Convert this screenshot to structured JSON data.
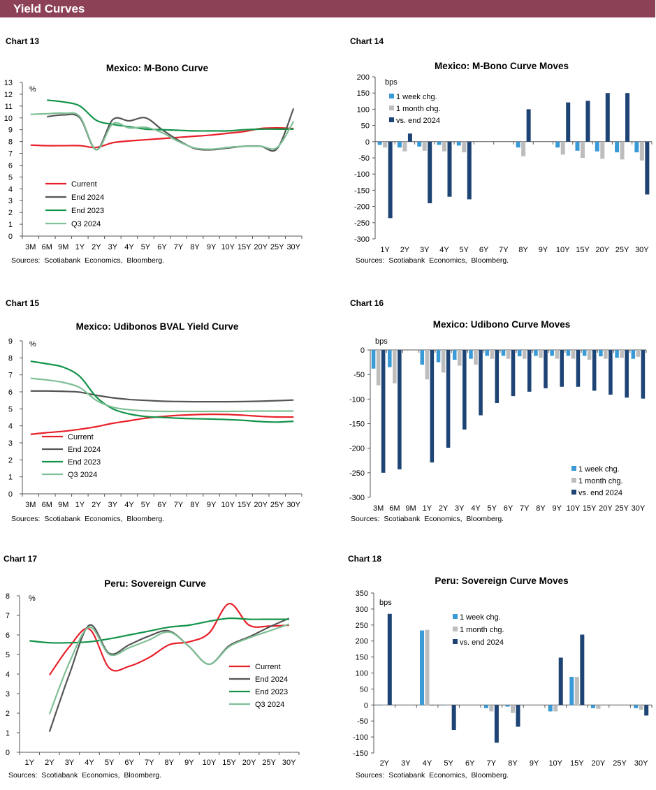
{
  "header": {
    "title": "Yield Curves"
  },
  "charts": [
    {
      "label": "Chart 13",
      "sources": "Sources: Scotiabank Economics, Bloomberg."
    },
    {
      "label": "Chart 14",
      "sources": "Sources: Scotiabank Economics, Bloomberg."
    },
    {
      "label": "Chart 15",
      "sources": "Sources: Scotiabank Economics, Bloomberg."
    },
    {
      "label": "Chart 16",
      "sources": "Sources: Scotiabank Economics, Bloomberg."
    },
    {
      "label": "Chart 17",
      "sources": "Sources: Scotiabank Economics, Bloomberg."
    },
    {
      "label": "Chart 18",
      "sources": "Sources: Scotiabank Economics, Bloomberg."
    }
  ],
  "chart_data": [
    {
      "type": "line",
      "title": "Mexico: M-Bono Curve",
      "unit": "%",
      "ylim": [
        0,
        13
      ],
      "ystep": 1,
      "grid": false,
      "legend": "left",
      "categories": [
        "3M",
        "6M",
        "9M",
        "1Y",
        "2Y",
        "3Y",
        "4Y",
        "5Y",
        "6Y",
        "7Y",
        "8Y",
        "9Y",
        "10Y",
        "15Y",
        "20Y",
        "25Y",
        "30Y"
      ],
      "series": [
        {
          "name": "Current",
          "color": "#e8202a",
          "values": [
            7.7,
            7.65,
            7.65,
            7.65,
            7.5,
            7.9,
            8.05,
            8.15,
            8.25,
            8.35,
            8.45,
            8.55,
            8.7,
            8.85,
            9.1,
            9.15,
            9.1
          ]
        },
        {
          "name": "End 2024",
          "color": "#555555",
          "values": [
            null,
            10.1,
            10.25,
            10.0,
            7.3,
            9.85,
            9.75,
            10.0,
            9.0,
            8.1,
            7.4,
            7.3,
            7.45,
            7.6,
            7.6,
            7.4,
            10.8
          ]
        },
        {
          "name": "End 2023",
          "color": "#13934a",
          "values": [
            null,
            11.5,
            11.35,
            11.0,
            9.8,
            9.45,
            9.25,
            9.05,
            9.0,
            8.95,
            8.9,
            8.9,
            8.9,
            9.0,
            9.05,
            9.05,
            9.05
          ]
        },
        {
          "name": "Q3 2024",
          "color": "#7fbf96",
          "values": [
            10.3,
            10.35,
            10.4,
            10.1,
            7.3,
            9.5,
            9.15,
            9.2,
            8.75,
            8.0,
            7.45,
            7.35,
            7.5,
            7.6,
            7.6,
            7.5,
            9.7
          ]
        }
      ]
    },
    {
      "type": "bar",
      "title": "Mexico: M-Bono Curve Moves",
      "unit": "bps",
      "ylim": [
        -300,
        200
      ],
      "ystep": 50,
      "grid": false,
      "legend": "top-left",
      "categories": [
        "1Y",
        "2Y",
        "3Y",
        "4Y",
        "5Y",
        "6Y",
        "7Y",
        "8Y",
        "9Y",
        "10Y",
        "15Y",
        "20Y",
        "25Y",
        "30Y"
      ],
      "series": [
        {
          "name": "1 week chg.",
          "color": "#3a9ad6",
          "values": [
            -10,
            -18,
            -15,
            -10,
            -12,
            null,
            null,
            -18,
            null,
            -18,
            -28,
            -30,
            -33,
            -33
          ]
        },
        {
          "name": "1 month chg.",
          "color": "#bdbdbd",
          "values": [
            -18,
            -30,
            -28,
            -30,
            -33,
            null,
            null,
            -45,
            null,
            -40,
            -50,
            -53,
            -55,
            -58
          ]
        },
        {
          "name": "vs. end 2024",
          "color": "#1d4475",
          "values": [
            -236,
            25,
            -190,
            -170,
            -178,
            null,
            null,
            100,
            null,
            121,
            126,
            150,
            150,
            -163
          ]
        }
      ]
    },
    {
      "type": "line",
      "title": "Mexico: Udibonos BVAL Yield Curve",
      "unit": "%",
      "ylim": [
        0,
        9
      ],
      "ystep": 1,
      "grid": false,
      "legend": "left",
      "categories": [
        "3M",
        "6M",
        "9M",
        "1Y",
        "2Y",
        "3Y",
        "4Y",
        "5Y",
        "6Y",
        "7Y",
        "8Y",
        "9Y",
        "10Y",
        "15Y",
        "20Y",
        "25Y",
        "30Y"
      ],
      "series": [
        {
          "name": "Current",
          "color": "#e8202a",
          "values": [
            3.5,
            3.6,
            3.68,
            3.8,
            3.95,
            4.15,
            4.3,
            4.45,
            4.55,
            4.62,
            4.66,
            4.68,
            4.67,
            4.62,
            4.56,
            4.52,
            4.52
          ]
        },
        {
          "name": "End 2024",
          "color": "#555555",
          "values": [
            6.05,
            6.05,
            6.03,
            5.98,
            5.8,
            5.65,
            5.55,
            5.5,
            5.45,
            5.43,
            5.42,
            5.42,
            5.42,
            5.43,
            5.45,
            5.48,
            5.52
          ]
        },
        {
          "name": "End 2023",
          "color": "#13934a",
          "values": [
            7.8,
            7.65,
            7.45,
            6.9,
            5.7,
            5.0,
            4.7,
            4.55,
            4.5,
            4.45,
            4.42,
            4.4,
            4.37,
            4.32,
            4.25,
            4.22,
            4.27
          ]
        },
        {
          "name": "Q3 2024",
          "color": "#7fbf96",
          "values": [
            6.8,
            6.7,
            6.55,
            6.25,
            5.5,
            5.1,
            4.95,
            4.88,
            4.85,
            4.85,
            4.85,
            4.85,
            4.85,
            4.86,
            4.87,
            4.87,
            4.87
          ]
        }
      ]
    },
    {
      "type": "bar",
      "title": "Mexico: Udibono Curve Moves",
      "unit": "bps",
      "ylim": [
        -300,
        0
      ],
      "ystep": 50,
      "grid": false,
      "legend": "bottom-right",
      "categories": [
        "3M",
        "6M",
        "9M",
        "1Y",
        "2Y",
        "3Y",
        "4Y",
        "5Y",
        "6Y",
        "7Y",
        "8Y",
        "9Y",
        "10Y",
        "15Y",
        "20Y",
        "25Y",
        "30Y"
      ],
      "series": [
        {
          "name": "1 week chg.",
          "color": "#3a9ad6",
          "values": [
            -38,
            -35,
            null,
            -30,
            -25,
            -20,
            -18,
            -12,
            -12,
            -13,
            -12,
            -12,
            -12,
            -12,
            -13,
            -16,
            -18
          ]
        },
        {
          "name": "1 month chg.",
          "color": "#bdbdbd",
          "values": [
            -72,
            -68,
            null,
            -60,
            -46,
            -32,
            -30,
            -18,
            -18,
            -18,
            -16,
            -18,
            -18,
            -20,
            -18,
            -16,
            -14
          ]
        },
        {
          "name": "vs. end 2024",
          "color": "#1d4475",
          "values": [
            -250,
            -243,
            null,
            -229,
            -199,
            -162,
            -133,
            -108,
            -94,
            -85,
            -78,
            -75,
            -75,
            -83,
            -91,
            -97,
            -99
          ]
        }
      ]
    },
    {
      "type": "line",
      "title": "Peru: Sovereign Curve",
      "unit": "%",
      "ylim": [
        0,
        8
      ],
      "ystep": 1,
      "grid": false,
      "legend": "right",
      "categories": [
        "1Y",
        "2Y",
        "3Y",
        "4Y",
        "5Y",
        "6Y",
        "7Y",
        "8Y",
        "9Y",
        "10Y",
        "15Y",
        "20Y",
        "25Y",
        "30Y"
      ],
      "series": [
        {
          "name": "Current",
          "color": "#e8202a",
          "values": [
            null,
            3.95,
            5.4,
            6.3,
            4.3,
            4.4,
            4.85,
            5.5,
            5.65,
            6.1,
            7.6,
            6.5,
            6.45,
            6.5
          ]
        },
        {
          "name": "End 2024",
          "color": "#555555",
          "values": [
            null,
            1.05,
            4.0,
            6.5,
            5.05,
            5.5,
            5.95,
            6.2,
            5.4,
            4.5,
            5.45,
            5.9,
            6.4,
            6.85
          ]
        },
        {
          "name": "End 2023",
          "color": "#13934a",
          "values": [
            5.7,
            5.6,
            5.6,
            5.65,
            5.8,
            6.0,
            6.2,
            6.4,
            6.5,
            6.7,
            6.85,
            6.8,
            6.8,
            6.8
          ]
        },
        {
          "name": "Q3 2024",
          "color": "#7fbf96",
          "values": [
            null,
            1.95,
            4.6,
            6.4,
            5.0,
            5.35,
            5.75,
            6.15,
            5.4,
            4.5,
            5.4,
            5.85,
            6.2,
            6.55
          ]
        }
      ]
    },
    {
      "type": "bar",
      "title": "Peru: Sovereign Curve Moves",
      "unit": "bps",
      "ylim": [
        -150,
        350
      ],
      "ystep": 50,
      "grid": false,
      "legend": "top-center",
      "categories": [
        "2Y",
        "3Y",
        "4Y",
        "5Y",
        "6Y",
        "7Y",
        "8Y",
        "9Y",
        "10Y",
        "15Y",
        "20Y",
        "25Y",
        "30Y"
      ],
      "series": [
        {
          "name": "1 week chg.",
          "color": "#3a9ad6",
          "values": [
            0,
            null,
            233,
            0,
            null,
            -10,
            -5,
            null,
            -20,
            88,
            -10,
            null,
            -10
          ]
        },
        {
          "name": "1 month chg.",
          "color": "#bdbdbd",
          "values": [
            0,
            null,
            235,
            0,
            null,
            -20,
            -25,
            null,
            -20,
            88,
            -12,
            null,
            -15
          ]
        },
        {
          "name": "vs. end 2024",
          "color": "#1d4475",
          "values": [
            285,
            null,
            0,
            -78,
            null,
            -118,
            -68,
            null,
            148,
            220,
            null,
            null,
            -33
          ]
        }
      ]
    }
  ]
}
